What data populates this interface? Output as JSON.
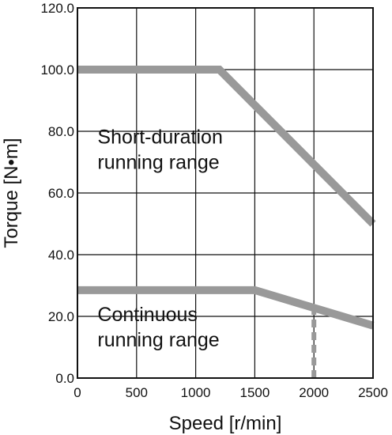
{
  "chart_data": {
    "type": "line",
    "xlabel": "Speed [r/min]",
    "ylabel": "Torque [N•m]",
    "xlim": [
      0,
      2500
    ],
    "ylim": [
      0,
      120
    ],
    "x_ticks": [
      "0",
      "500",
      "1000",
      "1500",
      "2000",
      "2500"
    ],
    "y_ticks": [
      "0.0",
      "20.0",
      "40.0",
      "60.0",
      "80.0",
      "100.0",
      "120.0"
    ],
    "grid": true,
    "series": [
      {
        "x": [
          0,
          1200,
          2500
        ],
        "y": [
          100,
          100,
          50
        ],
        "color": "#999999",
        "style": "solid"
      },
      {
        "x": [
          0,
          1500,
          2500
        ],
        "y": [
          28.5,
          28.5,
          17
        ],
        "color": "#999999",
        "style": "solid"
      },
      {
        "x": [
          2000,
          2000
        ],
        "y": [
          0,
          22.5
        ],
        "color": "#999999",
        "style": "dashed"
      }
    ],
    "annotations": [
      {
        "lines": [
          "Short-duration",
          "running range"
        ],
        "x": 170,
        "y": 76
      },
      {
        "lines": [
          "Continuous",
          "running range"
        ],
        "x": 170,
        "y": 18.5
      }
    ]
  }
}
